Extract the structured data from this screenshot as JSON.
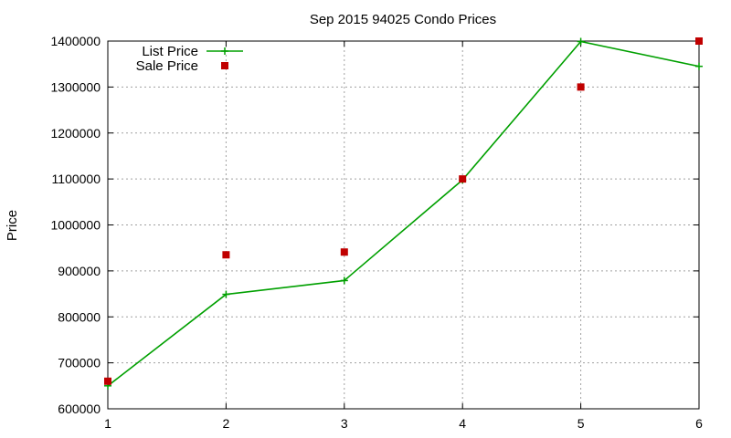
{
  "chart_data": {
    "type": "line",
    "title": "Sep 2015 94025 Condo Prices",
    "xlabel": "",
    "ylabel": "Price",
    "x": [
      1,
      2,
      3,
      4,
      5,
      6
    ],
    "x_ticks": [
      "1",
      "2",
      "3",
      "4",
      "5",
      "6"
    ],
    "y_ticks": [
      "600000",
      "700000",
      "800000",
      "900000",
      "1000000",
      "1100000",
      "1200000",
      "1300000",
      "1400000"
    ],
    "xlim": [
      1,
      6
    ],
    "ylim": [
      600000,
      1400000
    ],
    "grid": true,
    "legend_position": "top-left",
    "series": [
      {
        "name": "List Price",
        "style": "line+plus",
        "color": "#00a000",
        "values": [
          650000,
          849000,
          879000,
          1098000,
          1399000,
          1345000
        ]
      },
      {
        "name": "Sale Price",
        "style": "square",
        "color": "#c00000",
        "values": [
          660000,
          935000,
          941000,
          1100000,
          1300000,
          1400000
        ]
      }
    ]
  }
}
